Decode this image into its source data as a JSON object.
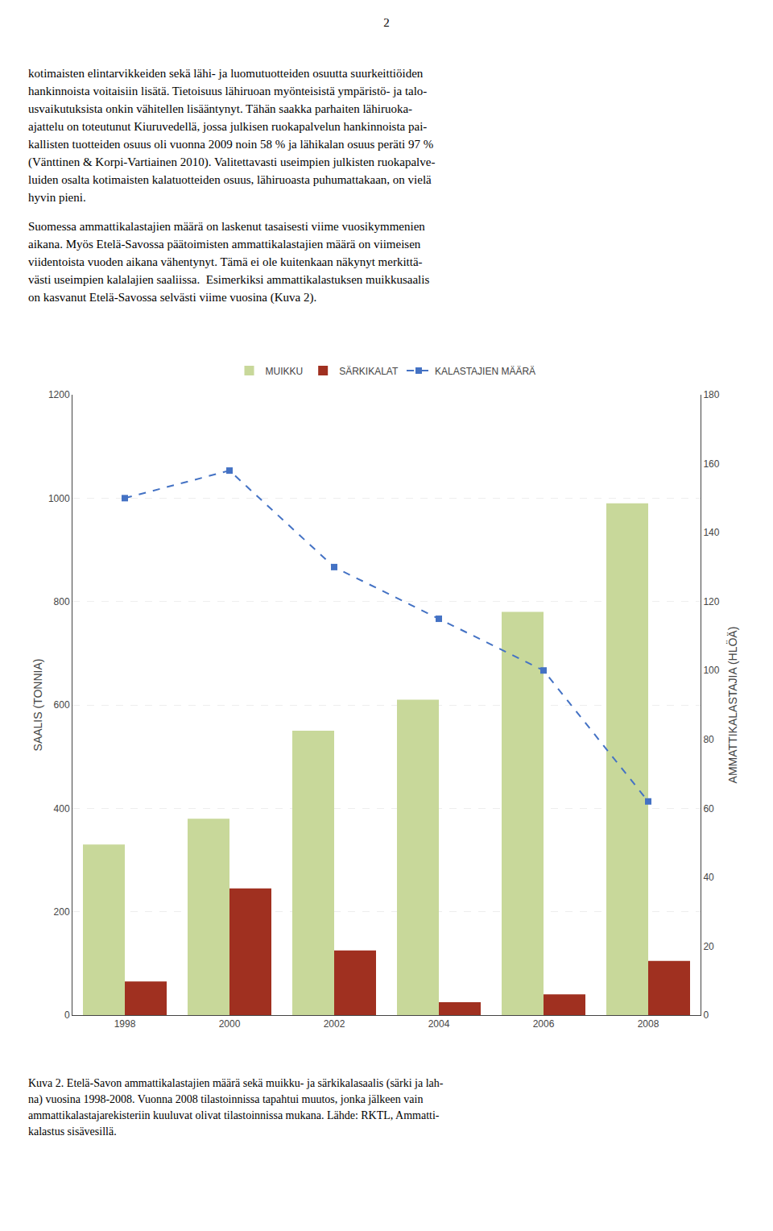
{
  "chart_data": {
    "type": "bar",
    "categories": [
      "1998",
      "2000",
      "2002",
      "2004",
      "2006",
      "2008"
    ],
    "series": [
      {
        "name": "MUIKKU",
        "color": "#c8d89a",
        "values": [
          330,
          380,
          550,
          610,
          780,
          990
        ]
      },
      {
        "name": "SÄRKIKALAT",
        "color": "#a03020",
        "values": [
          65,
          245,
          125,
          25,
          40,
          105
        ]
      },
      {
        "name": "KALASTAJIEN MÄÄRÄ",
        "type": "line",
        "color": "#4472c4",
        "line_style": "dashed",
        "marker": "square",
        "axis": "y2",
        "values": [
          150,
          158,
          130,
          115,
          100,
          62
        ]
      }
    ],
    "ylabel": "SAALIS (TONNIA)",
    "y2label": "AMMATTIKALASTAJIA (HLÖÄ)",
    "ylim": [
      0,
      1200
    ],
    "yticks": [
      0,
      200,
      400,
      600,
      800,
      1000,
      1200
    ],
    "y2lim": [
      0,
      180
    ],
    "y2ticks": [
      0,
      20,
      40,
      60,
      80,
      100,
      120,
      140,
      160,
      180
    ],
    "grid": true,
    "legend": "top",
    "annotations": [
      "2",
      "kotimaisten elintarvikkeiden sekä lähi- ja luomutuotteiden osuutta suurkeittiöiden\nhankinnoista voitaisiin lisätä. Tietoisuus lähiruoan myönteisistä ympäristö- ja talo-\nusvaikutuksista onkin vähitellen lisääntynyt. Tähän saakka parhaiten lähiruoka-\najattelu on toteutunut Kiuruvedellä, jossa julkisen ruokapalvelun hankinnoista pai-\nkallisten tuotteiden osuus oli vuonna 2009 noin 58 % ja lähikalan osuus peräti 97 %\n(Vänttinen & Korpi-Vartiainen 2010). Valitettavasti useimpien julkisten ruokapalve-\nluiden osalta kotimaisten kalatuotteiden osuus, lähiruoasta puhumattakaan, on vielä\nhyvin pieni.",
      "Suomessa ammattikalastajien määrä on laskenut tasaisesti viime vuosikymmenien\naikana. Myös Etelä-Savossa päätoimisten ammattikalastajien määrä on viimeisen\nviidentoista vuoden aikana vähentynyt. Tämä ei ole kuitenkaan näkynyt merkittä-\nvästi useimpien kalalajien saaliissa.  Esimerkiksi ammattikalastuksen muikkusaalis\non kasvanut Etelä-Savossa selvästi viime vuosina (Kuva 2).",
      "Kuva 2. Etelä-Savon ammattikalastajien määrä sekä muikku- ja särkikalasaalis (särki ja lah-\nna) vuosina 1998-2008. Vuonna 2008 tilastoinnissa tapahtui muutos, jonka jälkeen vain\nammattikalastajarekisteriin kuuluvat olivat tilastoinnissa mukana. Lähde: RKTL, Ammatti-\nkalastus sisävesillä."
    ]
  }
}
